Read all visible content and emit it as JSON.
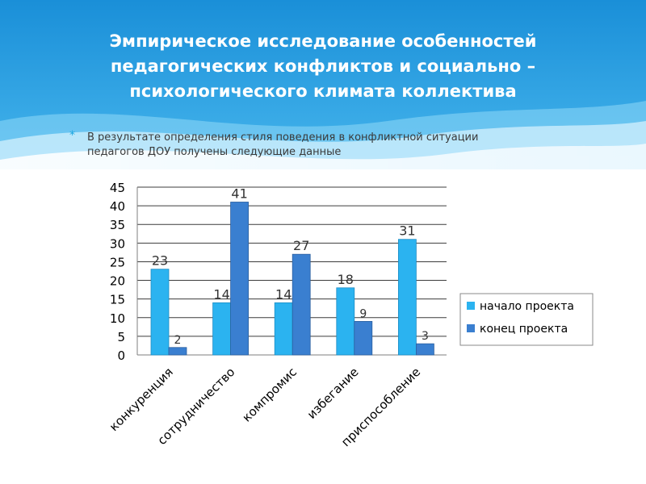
{
  "slide": {
    "title_lines": [
      "Эмпирическое исследование особенностей",
      "педагогических конфликтов и социально –",
      "психологического климата коллектива"
    ],
    "bullet_line1": "В результате определения стиля поведения в конфликтной ситуации",
    "bullet_line2": "педагогов  ДОУ получены следующие данные"
  },
  "colors": {
    "header_blue": "#1a8fd8",
    "header_light": "#5cc6f2",
    "series_start": "#2bb3f0",
    "series_end": "#3a7fd0",
    "bullet": "#1aa6e0"
  },
  "chart_data": {
    "type": "bar",
    "categories": [
      "конкуренция",
      "сотрудничество",
      "компромис",
      "избегание",
      "приспособление"
    ],
    "series": [
      {
        "name": "начало проекта",
        "values": [
          23,
          14,
          14,
          18,
          31
        ]
      },
      {
        "name": "конец проекта",
        "values": [
          2,
          41,
          27,
          9,
          3
        ]
      }
    ],
    "yticks": [
      "0",
      "5",
      "10",
      "15",
      "20",
      "25",
      "30",
      "35",
      "40",
      "45"
    ],
    "ylim": [
      0,
      45
    ],
    "grid": true,
    "legend_position": "right"
  }
}
